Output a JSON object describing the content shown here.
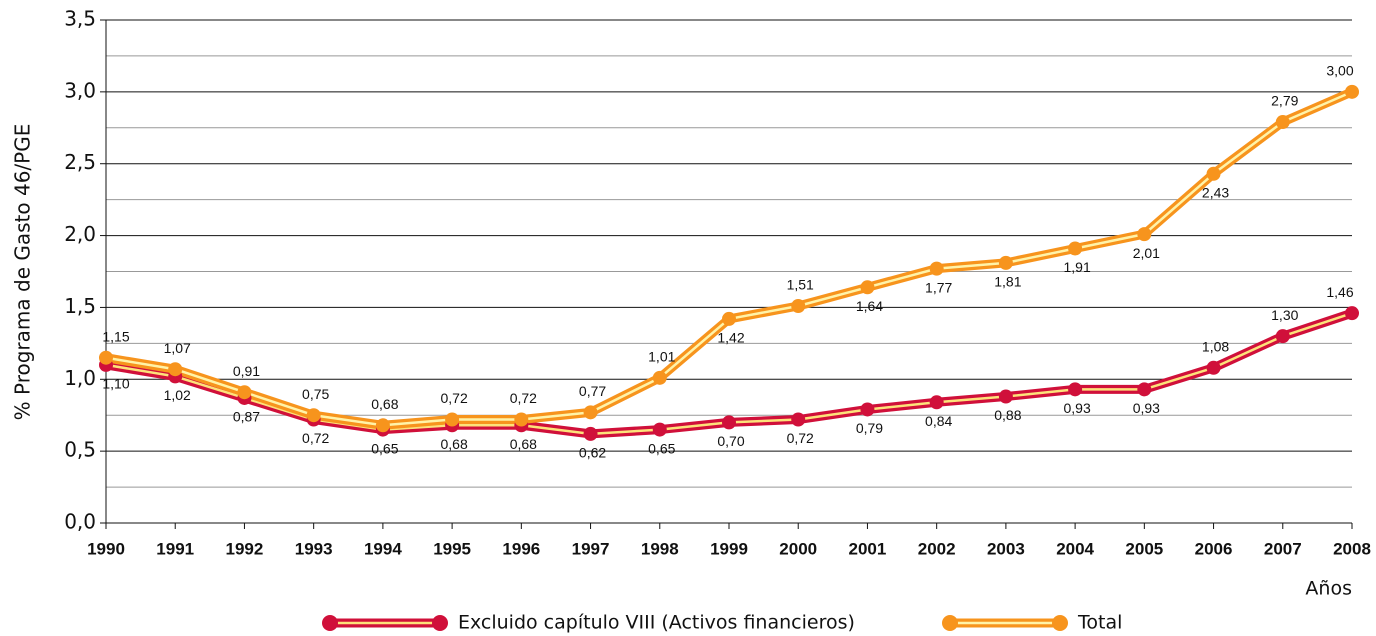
{
  "chart_data": {
    "type": "line",
    "y_label": "% Programa de Gasto 46/PGE",
    "x_label": "Años",
    "categories": [
      "1990",
      "1991",
      "1992",
      "1993",
      "1994",
      "1995",
      "1996",
      "1997",
      "1998",
      "1999",
      "2000",
      "2001",
      "2002",
      "2003",
      "2004",
      "2005",
      "2006",
      "2007",
      "2008"
    ],
    "series": [
      {
        "name": "Excluido capítulo VIII (Activos financieros)",
        "color": "#d0103a",
        "inner_color": "#fde27a",
        "values": [
          1.1,
          1.02,
          0.87,
          0.72,
          0.65,
          0.68,
          0.68,
          0.62,
          0.65,
          0.7,
          0.72,
          0.79,
          0.84,
          0.88,
          0.93,
          0.93,
          1.08,
          1.3,
          1.46
        ],
        "value_labels": [
          "1,10",
          "1,02",
          "0,87",
          "0,72",
          "0,65",
          "0,68",
          "0,68",
          "0,62",
          "0,65",
          "0,70",
          "0,72",
          "0,79",
          "0,84",
          "0,88",
          "0,93",
          "0,93",
          "1,08",
          "1,30",
          "1,46"
        ]
      },
      {
        "name": "Total",
        "color": "#f7941d",
        "inner_color": "#fff3a8",
        "values": [
          1.15,
          1.07,
          0.91,
          0.75,
          0.68,
          0.72,
          0.72,
          0.77,
          1.01,
          1.42,
          1.51,
          1.64,
          1.77,
          1.81,
          1.91,
          2.01,
          2.43,
          2.79,
          3.0
        ],
        "value_labels": [
          "1,15",
          "1,07",
          "0,91",
          "0,75",
          "0,68",
          "0,72",
          "0,72",
          "0,77",
          "1,01",
          "1,42",
          "1,51",
          "1,64",
          "1,77",
          "1,81",
          "1,91",
          "2,01",
          "2,43",
          "2,79",
          "3,00"
        ]
      }
    ],
    "ylim": [
      0,
      3.5
    ],
    "yticks": [
      {
        "value": 0,
        "label": "0,0"
      },
      {
        "value": 0.5,
        "label": "0,5"
      },
      {
        "value": 1,
        "label": "1,0"
      },
      {
        "value": 1.5,
        "label": "1,5"
      },
      {
        "value": 2,
        "label": "2,0"
      },
      {
        "value": 2.5,
        "label": "2,5"
      },
      {
        "value": 3,
        "label": "3,0"
      },
      {
        "value": 3.5,
        "label": "3,5"
      }
    ],
    "minor_yticks": [
      0.25,
      0.75,
      1.25,
      1.75,
      2.25,
      2.75,
      3.25
    ],
    "grid": true,
    "legend": "bottom"
  }
}
